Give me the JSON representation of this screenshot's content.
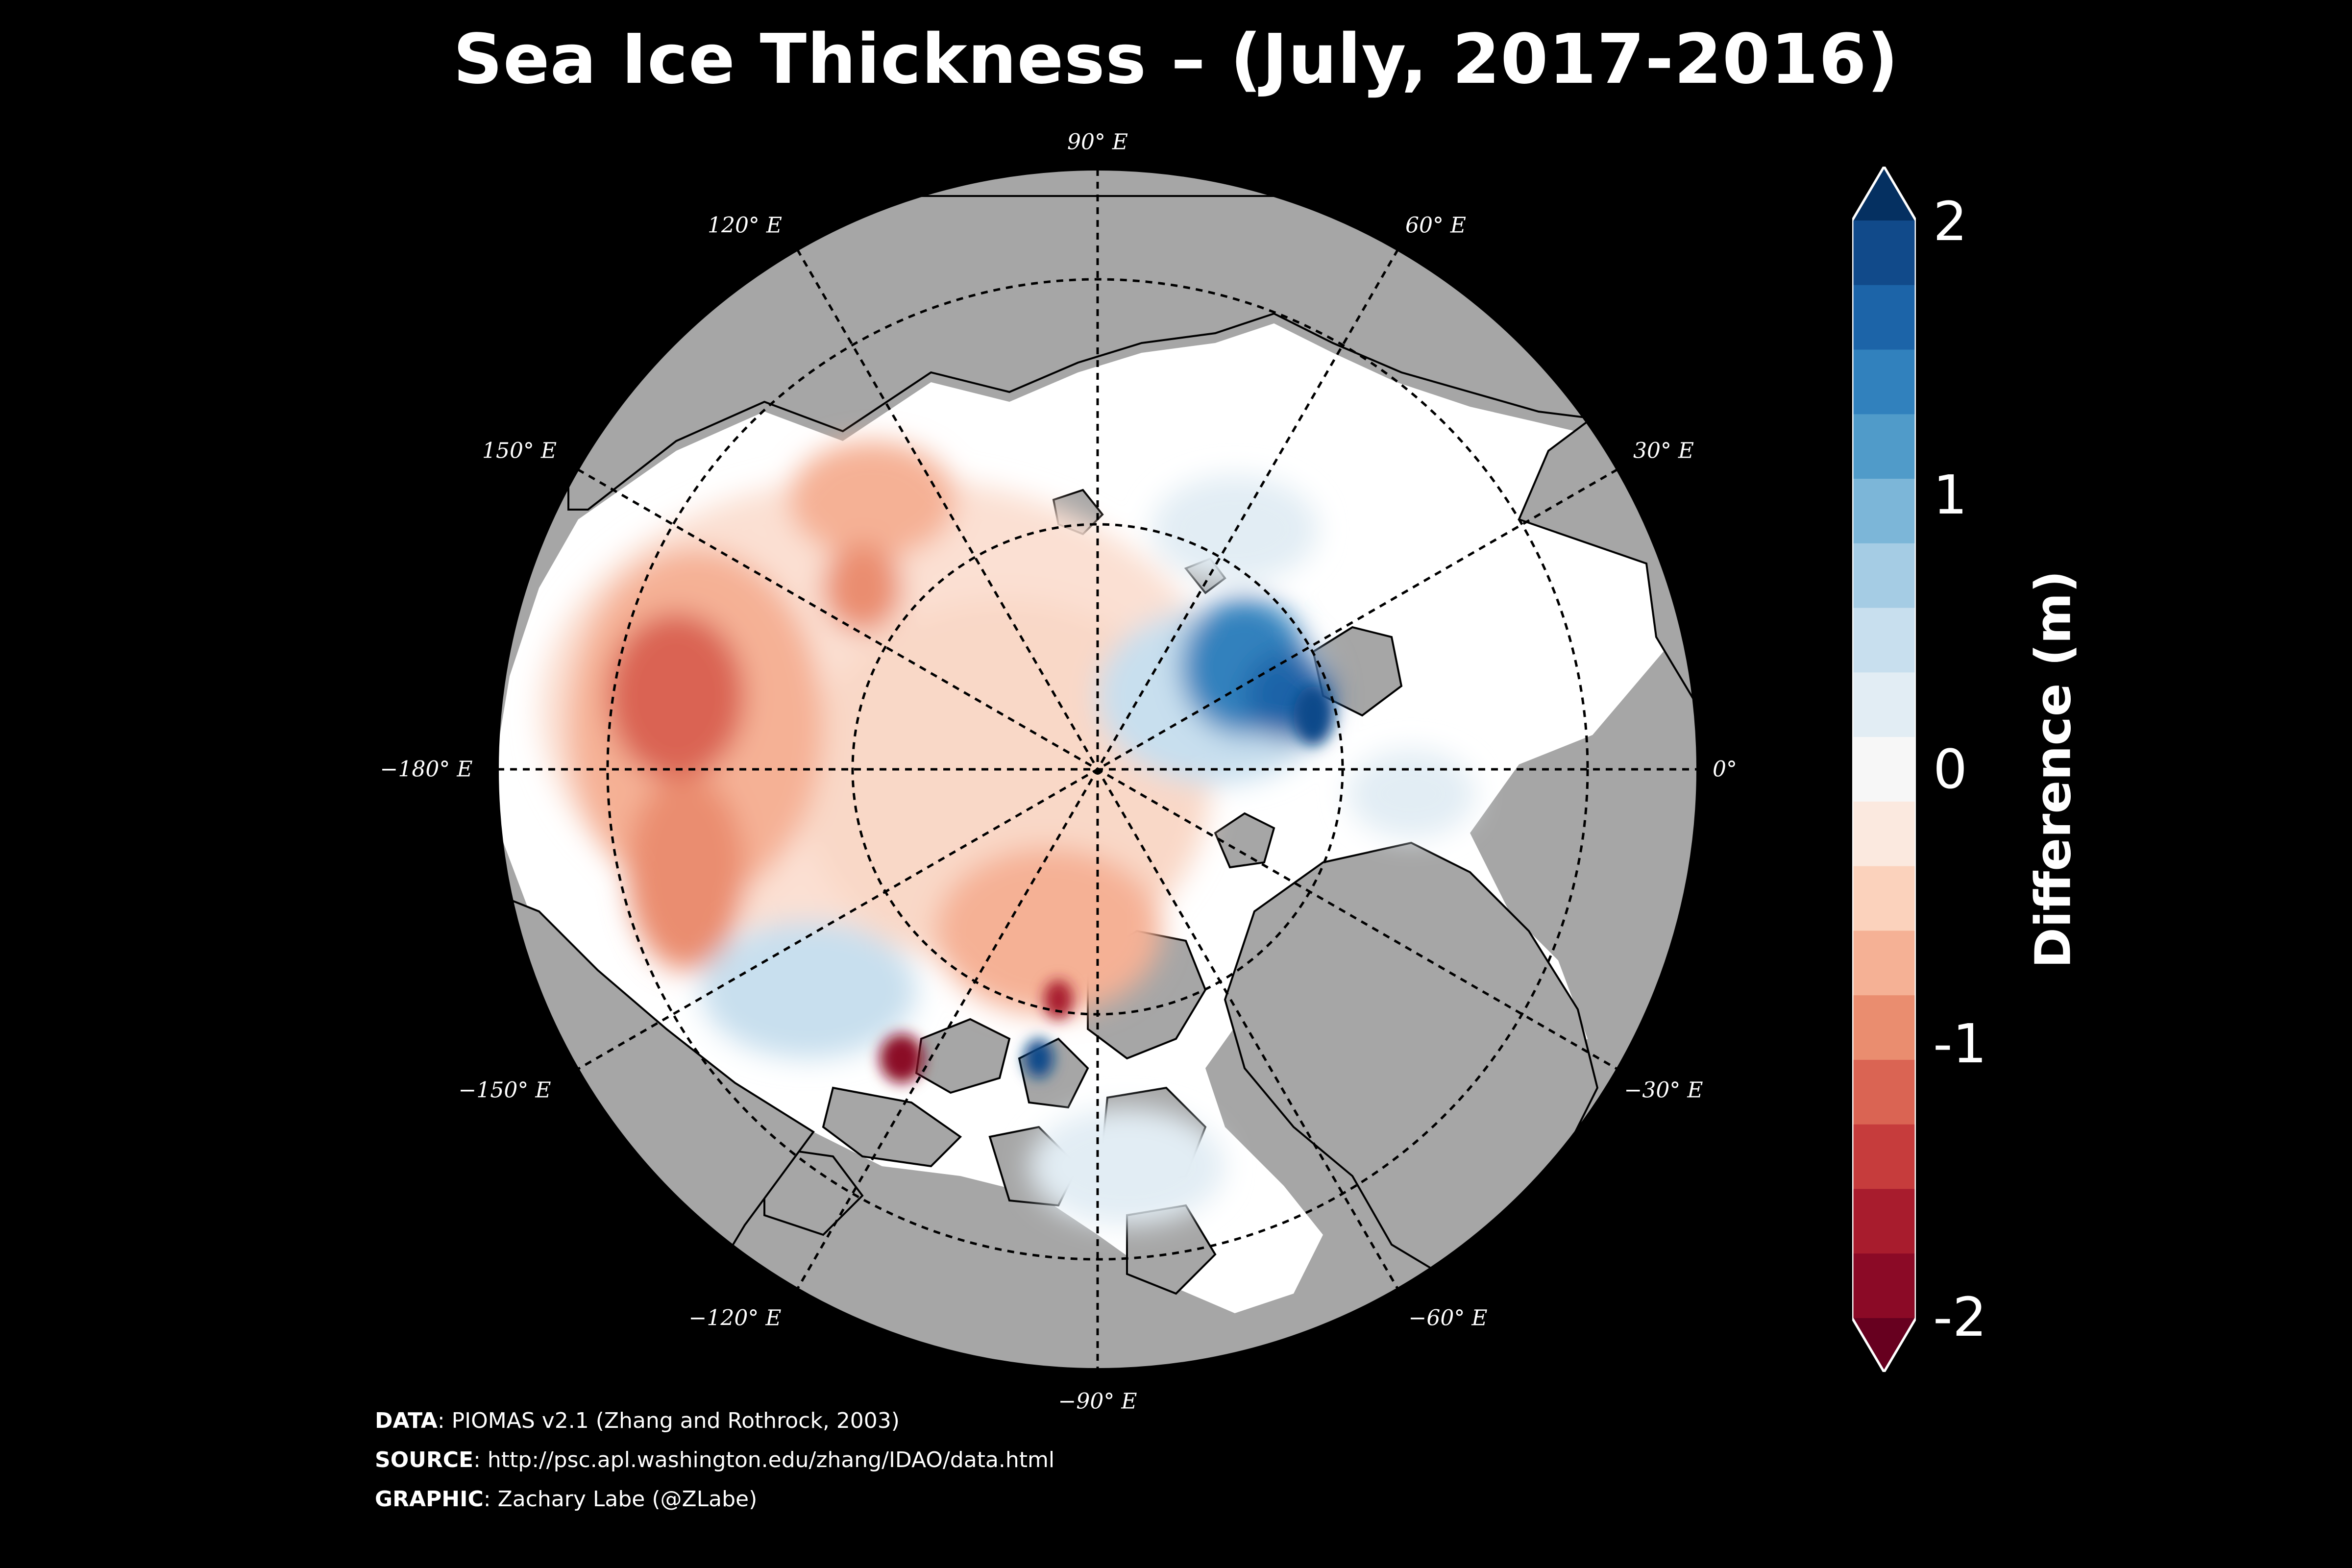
{
  "title": "Sea Ice Thickness – (July, 2017-2016)",
  "longitude_labels": [
    {
      "text": "90° E",
      "key": "lon_90"
    },
    {
      "text": "60° E",
      "key": "lon_60"
    },
    {
      "text": "30° E",
      "key": "lon_30"
    },
    {
      "text": "0°",
      "key": "lon_0"
    },
    {
      "text": "−30° E",
      "key": "lon_m30"
    },
    {
      "text": "−60° E",
      "key": "lon_m60"
    },
    {
      "text": "−90° E",
      "key": "lon_m90"
    },
    {
      "text": "−120° E",
      "key": "lon_m120"
    },
    {
      "text": "−150° E",
      "key": "lon_m150"
    },
    {
      "text": "−180° E",
      "key": "lon_m180"
    },
    {
      "text": "150° E",
      "key": "lon_150"
    },
    {
      "text": "120° E",
      "key": "lon_120"
    }
  ],
  "colorbar": {
    "label": "Difference (m)",
    "ticks": [
      "2",
      "1",
      "0",
      "-1",
      "-2"
    ],
    "min": -2,
    "max": 2,
    "colors": [
      "#67001f",
      "#8b0a26",
      "#a81c2d",
      "#c63c3c",
      "#da6453",
      "#ea8d6f",
      "#f5b195",
      "#fbd2bc",
      "#fbe9df",
      "#f7f7f7",
      "#e2edf4",
      "#c8dfee",
      "#a5cce4",
      "#7cb6d8",
      "#509bc9",
      "#3181bd",
      "#1c64a8",
      "#114a8a",
      "#053061"
    ]
  },
  "credits": [
    {
      "label": "DATA",
      "text": ": PIOMAS v2.1 (Zhang and Rothrock, 2003)"
    },
    {
      "label": "SOURCE",
      "text": ": http://psc.apl.washington.edu/zhang/IDAO/data.html"
    },
    {
      "label": "GRAPHIC",
      "text": ": Zachary Labe (@ZLabe)"
    }
  ],
  "colors": {
    "land": "#a6a6a6",
    "background": "#000000",
    "open_water": "#ffffff"
  }
}
